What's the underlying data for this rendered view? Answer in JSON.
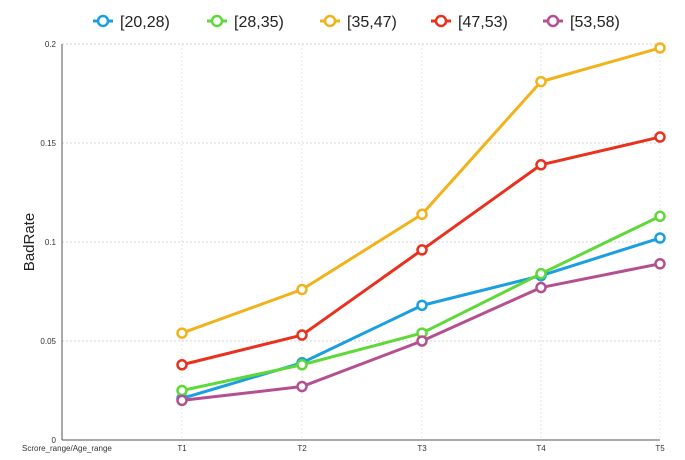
{
  "chart_data": {
    "type": "line",
    "categories": [
      "T1",
      "T2",
      "T3",
      "T4",
      "T5"
    ],
    "xlabel": "Scrore_range/Age_range",
    "ylabel": "BadRate",
    "ylim": [
      0,
      0.2
    ],
    "yticks": [
      "0",
      "0.05",
      "0.1",
      "0.15",
      "0.2"
    ],
    "grid": true,
    "legend_position": "top",
    "series": [
      {
        "name": "[20,28)",
        "color": "#1a9fe0",
        "values": [
          0.021,
          0.039,
          0.068,
          0.083,
          0.102
        ]
      },
      {
        "name": "[28,35)",
        "color": "#5fd93a",
        "values": [
          0.025,
          0.038,
          0.054,
          0.084,
          0.113
        ]
      },
      {
        "name": "[35,47)",
        "color": "#f2b21a",
        "values": [
          0.054,
          0.076,
          0.114,
          0.181,
          0.198
        ]
      },
      {
        "name": "[47,53)",
        "color": "#e8321e",
        "values": [
          0.038,
          0.053,
          0.096,
          0.139,
          0.153
        ]
      },
      {
        "name": "[53,58)",
        "color": "#b4508f",
        "values": [
          0.02,
          0.027,
          0.05,
          0.077,
          0.089
        ]
      }
    ]
  }
}
